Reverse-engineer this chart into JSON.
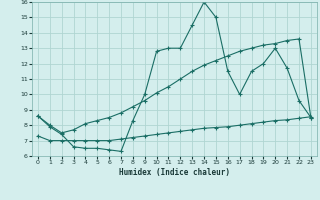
{
  "xlabel": "Humidex (Indice chaleur)",
  "xlim": [
    -0.5,
    23.5
  ],
  "ylim": [
    6,
    16
  ],
  "xticks": [
    0,
    1,
    2,
    3,
    4,
    5,
    6,
    7,
    8,
    9,
    10,
    11,
    12,
    13,
    14,
    15,
    16,
    17,
    18,
    19,
    20,
    21,
    22,
    23
  ],
  "yticks": [
    6,
    7,
    8,
    9,
    10,
    11,
    12,
    13,
    14,
    15,
    16
  ],
  "bg_color": "#d4eeed",
  "grid_color": "#b0d5d2",
  "line_color": "#1a6e65",
  "line1_x": [
    0,
    1,
    2,
    3,
    4,
    5,
    6,
    7,
    8,
    9,
    10,
    11,
    12,
    13,
    14,
    15,
    16,
    17,
    18,
    19,
    20,
    21,
    22,
    23
  ],
  "line1_y": [
    8.6,
    7.9,
    7.4,
    6.6,
    6.5,
    6.5,
    6.4,
    6.3,
    8.3,
    10.0,
    12.8,
    13.0,
    13.0,
    14.5,
    16.0,
    15.0,
    11.5,
    10.0,
    11.5,
    12.0,
    13.0,
    11.7,
    9.6,
    8.5
  ],
  "line2_x": [
    0,
    1,
    2,
    3,
    4,
    5,
    6,
    7,
    8,
    9,
    10,
    11,
    12,
    13,
    14,
    15,
    16,
    17,
    18,
    19,
    20,
    21,
    22,
    23
  ],
  "line2_y": [
    8.6,
    8.0,
    7.5,
    7.7,
    8.1,
    8.3,
    8.5,
    8.8,
    9.2,
    9.6,
    10.1,
    10.5,
    11.0,
    11.5,
    11.9,
    12.2,
    12.5,
    12.8,
    13.0,
    13.2,
    13.3,
    13.5,
    13.6,
    8.5
  ],
  "line3_x": [
    0,
    1,
    2,
    3,
    4,
    5,
    6,
    7,
    8,
    9,
    10,
    11,
    12,
    13,
    14,
    15,
    16,
    17,
    18,
    19,
    20,
    21,
    22,
    23
  ],
  "line3_y": [
    7.3,
    7.0,
    7.0,
    7.0,
    7.0,
    7.0,
    7.0,
    7.1,
    7.2,
    7.3,
    7.4,
    7.5,
    7.6,
    7.7,
    7.8,
    7.85,
    7.9,
    8.0,
    8.1,
    8.2,
    8.3,
    8.35,
    8.45,
    8.55
  ]
}
